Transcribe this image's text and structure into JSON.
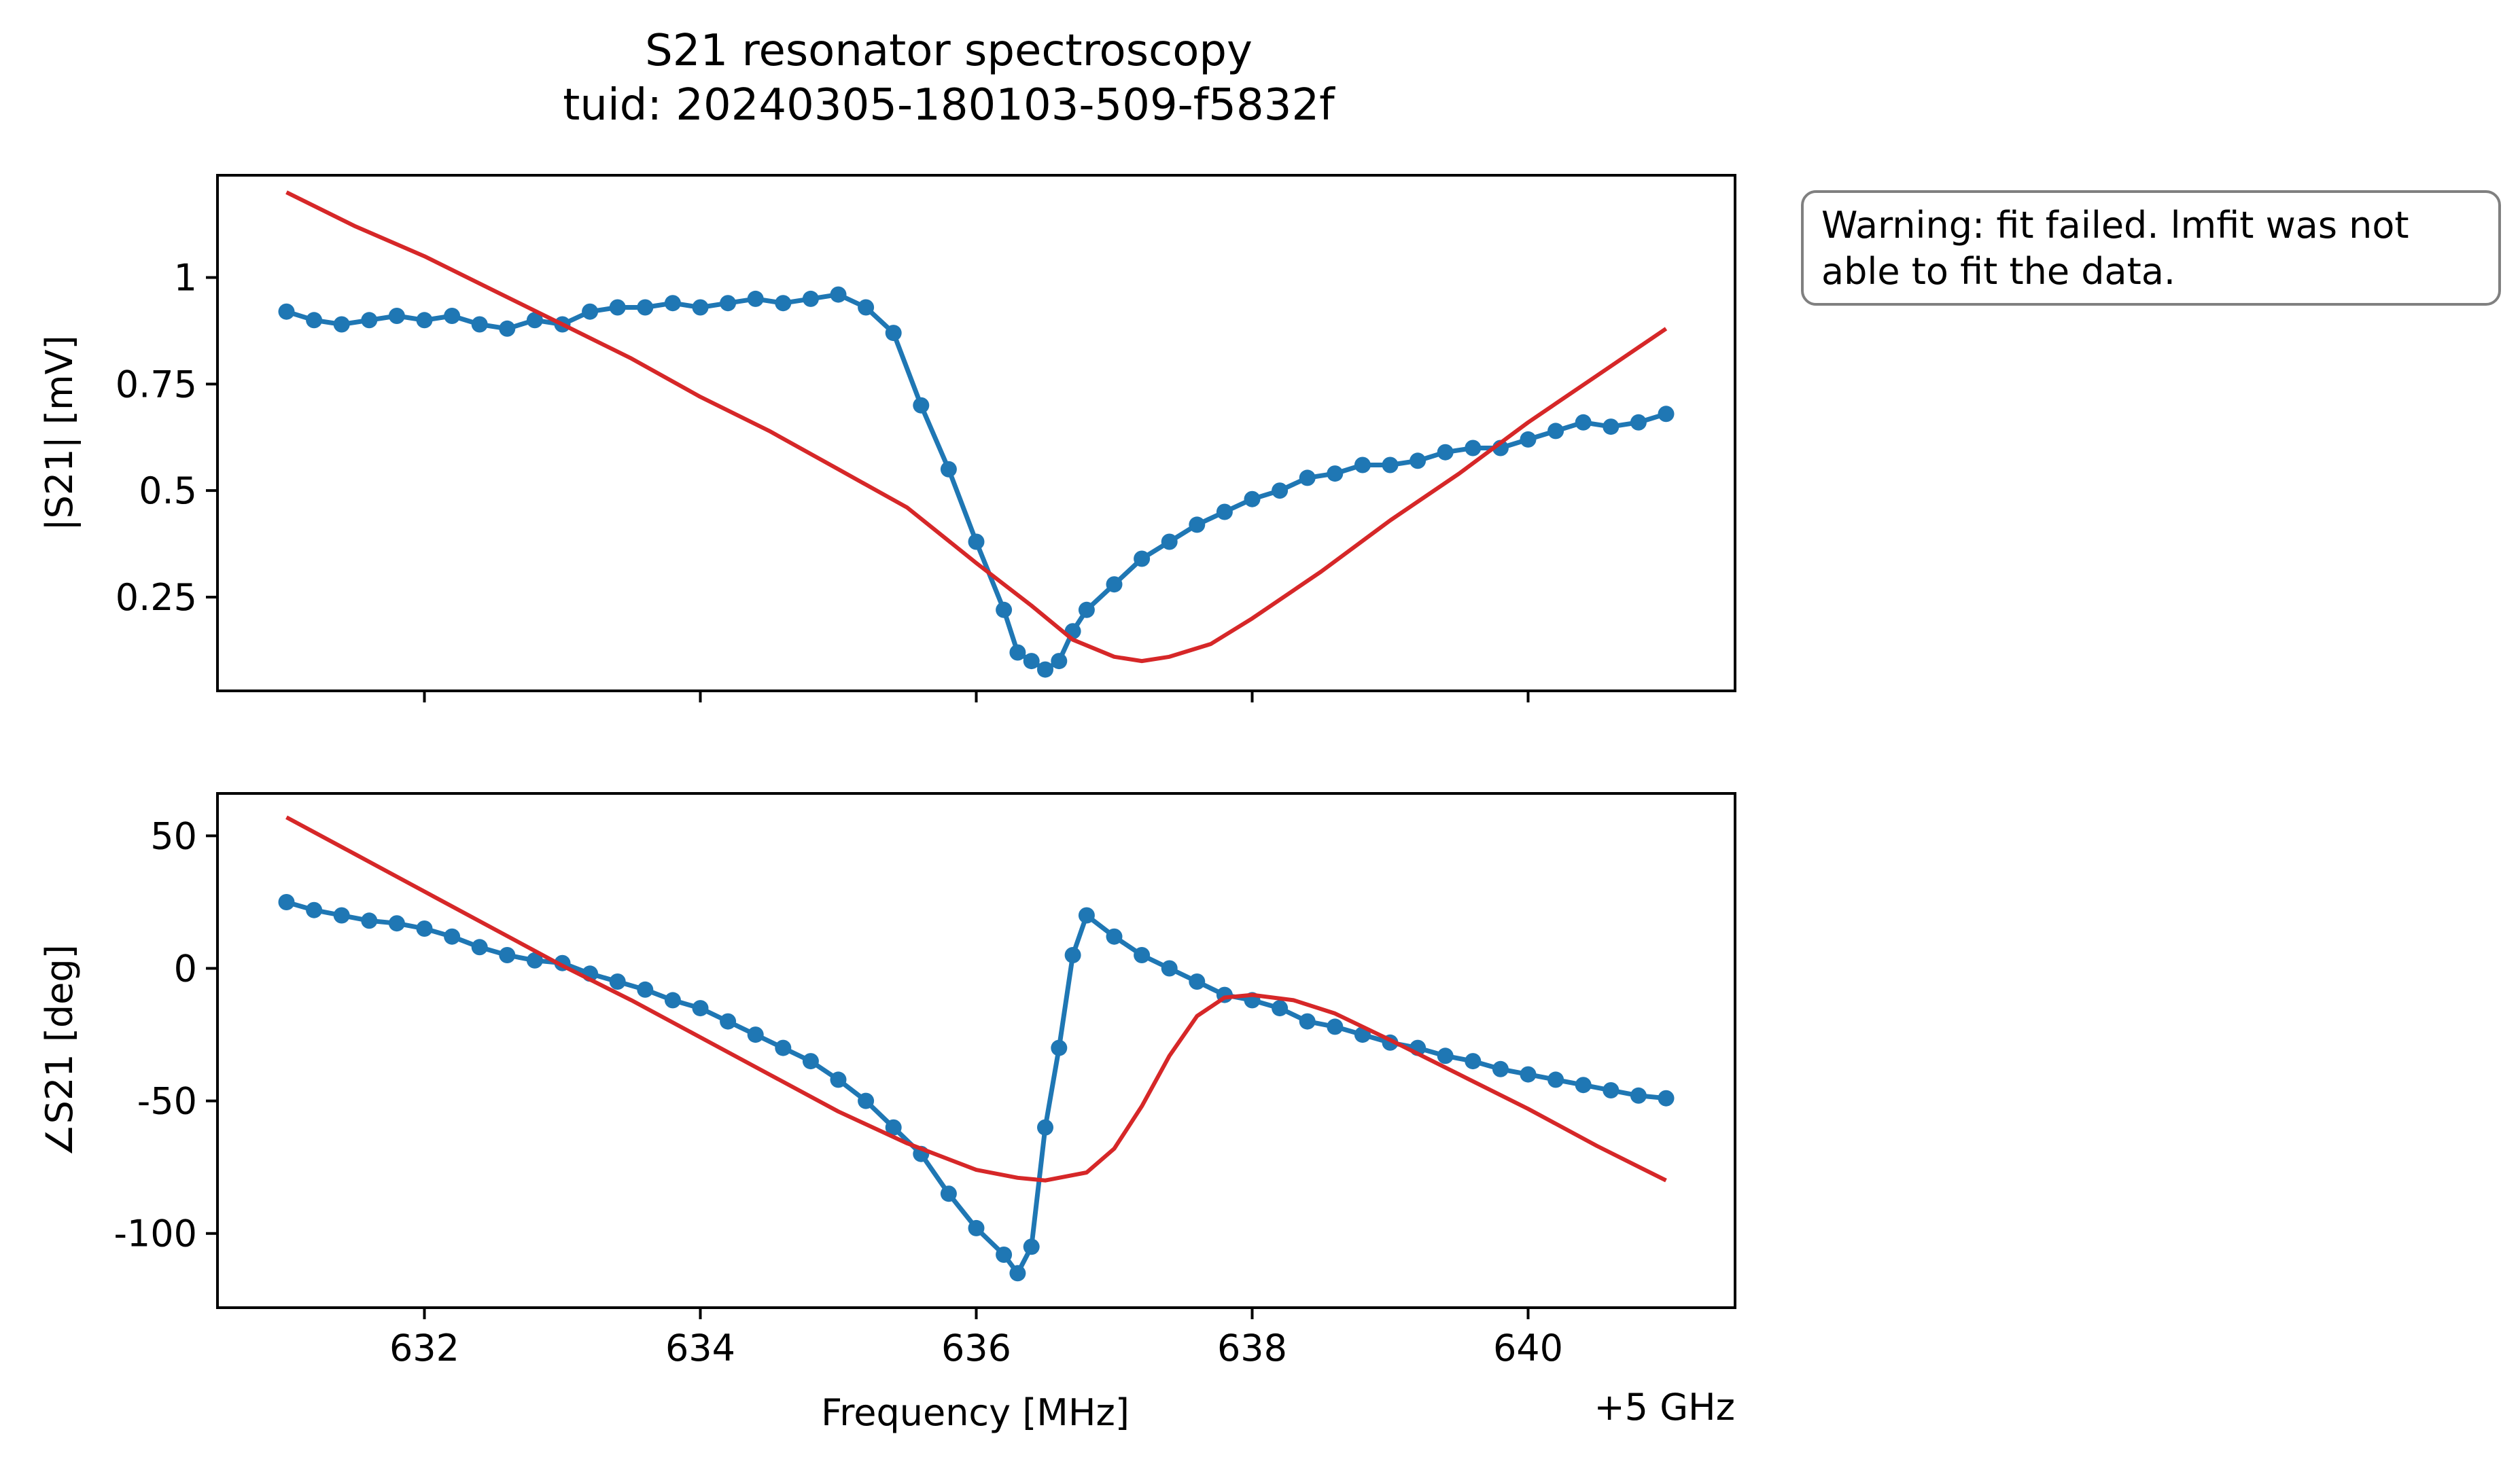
{
  "figure": {
    "title_line1": "S21 resonator spectroscopy",
    "title_line2": "tuid: 20240305-180103-509-f5832f",
    "offset_label": "+5 GHz",
    "warning": "Warning: fit failed. lmfit was not\nable to fit the data."
  },
  "colors": {
    "data": "#1f77b4",
    "fit": "#d62728",
    "axes": "#000000",
    "box_edge": "#808080"
  },
  "chart_data": [
    {
      "type": "line",
      "panel": "top",
      "xlabel": "",
      "ylabel": "|S21| [mV]",
      "xlim": [
        630.5,
        641.5
      ],
      "ylim": [
        0.03,
        1.24
      ],
      "xticks": [
        632,
        634,
        636,
        638,
        640
      ],
      "xtick_labels": [
        "",
        "",
        "",
        "",
        ""
      ],
      "yticks": [
        0.25,
        0.5,
        0.75,
        1
      ],
      "ytick_labels": [
        "0.25",
        "0.5",
        "0.75",
        "1"
      ],
      "series": [
        {
          "role": "data",
          "x": [
            631.0,
            631.2,
            631.4,
            631.6,
            631.8,
            632.0,
            632.2,
            632.4,
            632.6,
            632.8,
            633.0,
            633.2,
            633.4,
            633.6,
            633.8,
            634.0,
            634.2,
            634.4,
            634.6,
            634.8,
            635.0,
            635.2,
            635.4,
            635.6,
            635.8,
            636.0,
            636.2,
            636.3,
            636.4,
            636.5,
            636.6,
            636.7,
            636.8,
            637.0,
            637.2,
            637.4,
            637.6,
            637.8,
            638.0,
            638.2,
            638.4,
            638.6,
            638.8,
            639.0,
            639.2,
            639.4,
            639.6,
            639.8,
            640.0,
            640.2,
            640.4,
            640.6,
            640.8,
            641.0
          ],
          "y": [
            0.92,
            0.9,
            0.89,
            0.9,
            0.91,
            0.9,
            0.91,
            0.89,
            0.88,
            0.9,
            0.89,
            0.92,
            0.93,
            0.93,
            0.94,
            0.93,
            0.94,
            0.95,
            0.94,
            0.95,
            0.96,
            0.93,
            0.87,
            0.7,
            0.55,
            0.38,
            0.22,
            0.12,
            0.1,
            0.08,
            0.1,
            0.17,
            0.22,
            0.28,
            0.34,
            0.38,
            0.42,
            0.45,
            0.48,
            0.5,
            0.53,
            0.54,
            0.56,
            0.56,
            0.57,
            0.59,
            0.6,
            0.6,
            0.62,
            0.64,
            0.66,
            0.65,
            0.66,
            0.68
          ]
        },
        {
          "role": "fit",
          "x": [
            631.0,
            631.5,
            632.0,
            632.5,
            633.0,
            633.5,
            634.0,
            634.5,
            635.0,
            635.5,
            636.0,
            636.4,
            636.7,
            637.0,
            637.2,
            637.4,
            637.7,
            638.0,
            638.5,
            639.0,
            639.5,
            640.0,
            640.5,
            641.0
          ],
          "y": [
            1.2,
            1.12,
            1.05,
            0.97,
            0.89,
            0.81,
            0.72,
            0.64,
            0.55,
            0.46,
            0.33,
            0.23,
            0.15,
            0.11,
            0.1,
            0.11,
            0.14,
            0.2,
            0.31,
            0.43,
            0.54,
            0.66,
            0.77,
            0.88
          ]
        }
      ]
    },
    {
      "type": "line",
      "panel": "bottom",
      "xlabel": "Frequency [MHz]",
      "ylabel": "∠S21 [deg]",
      "xlim": [
        630.5,
        641.5
      ],
      "ylim": [
        -128,
        66
      ],
      "xticks": [
        632,
        634,
        636,
        638,
        640
      ],
      "xtick_labels": [
        "632",
        "634",
        "636",
        "638",
        "640"
      ],
      "yticks": [
        50,
        0,
        -50,
        -100
      ],
      "ytick_labels": [
        "50",
        "0",
        "-50",
        "-100"
      ],
      "series": [
        {
          "role": "data",
          "x": [
            631.0,
            631.2,
            631.4,
            631.6,
            631.8,
            632.0,
            632.2,
            632.4,
            632.6,
            632.8,
            633.0,
            633.2,
            633.4,
            633.6,
            633.8,
            634.0,
            634.2,
            634.4,
            634.6,
            634.8,
            635.0,
            635.2,
            635.4,
            635.6,
            635.8,
            636.0,
            636.2,
            636.3,
            636.4,
            636.5,
            636.6,
            636.7,
            636.8,
            637.0,
            637.2,
            637.4,
            637.6,
            637.8,
            638.0,
            638.2,
            638.4,
            638.6,
            638.8,
            639.0,
            639.2,
            639.4,
            639.6,
            639.8,
            640.0,
            640.2,
            640.4,
            640.6,
            640.8,
            641.0
          ],
          "y": [
            25,
            22,
            20,
            18,
            17,
            15,
            12,
            8,
            5,
            3,
            2,
            -2,
            -5,
            -8,
            -12,
            -15,
            -20,
            -25,
            -30,
            -35,
            -42,
            -50,
            -60,
            -70,
            -85,
            -98,
            -108,
            -115,
            -105,
            -60,
            -30,
            5,
            20,
            12,
            5,
            0,
            -5,
            -10,
            -12,
            -15,
            -20,
            -22,
            -25,
            -28,
            -30,
            -33,
            -35,
            -38,
            -40,
            -42,
            -44,
            -46,
            -48,
            -49
          ]
        },
        {
          "role": "fit",
          "x": [
            631.0,
            631.5,
            632.0,
            632.5,
            633.0,
            633.5,
            634.0,
            634.5,
            635.0,
            635.5,
            636.0,
            636.3,
            636.5,
            636.8,
            637.0,
            637.2,
            637.4,
            637.6,
            637.8,
            638.0,
            638.3,
            638.6,
            639.0,
            639.5,
            640.0,
            640.5,
            641.0
          ],
          "y": [
            57,
            43,
            29,
            15,
            1,
            -12,
            -26,
            -40,
            -54,
            -66,
            -76,
            -79,
            -80,
            -77,
            -68,
            -52,
            -33,
            -18,
            -11,
            -10,
            -12,
            -17,
            -27,
            -40,
            -53,
            -67,
            -80
          ]
        }
      ]
    }
  ]
}
